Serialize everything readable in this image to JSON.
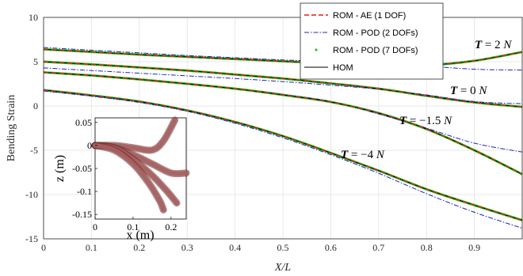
{
  "chart_data": {
    "type": "line",
    "xlabel": "X/L",
    "ylabel": "Bending Strain",
    "xlim": [
      0,
      1
    ],
    "ylim": [
      -15,
      10
    ],
    "xticks": [
      "0",
      "0.1",
      "0.2",
      "0.3",
      "0.4",
      "0.5",
      "0.6",
      "0.7",
      "0.8",
      "0.9"
    ],
    "yticks": [
      "10",
      "5",
      "0",
      "-5",
      "-10",
      "-15"
    ],
    "grid": true,
    "legend_position": "top-right",
    "legend": [
      "ROM - AE (1 DOF)",
      "ROM - POD (2 DOFs)",
      "ROM - POD (7 DOFs)",
      "HOM"
    ],
    "colors": {
      "rom_ae": "#e41a1c",
      "rom_pod2": "#1f1fd0",
      "rom_pod7": "#22cc22",
      "hom": "#000000"
    },
    "annotations": [
      {
        "prefix": "T",
        "eq": " = 2 ",
        "unit": "N"
      },
      {
        "prefix": "T",
        "eq": " = 0 ",
        "unit": "N"
      },
      {
        "prefix": "T",
        "eq": " = −1.5 ",
        "unit": "N"
      },
      {
        "prefix": "T",
        "eq": " = −4 ",
        "unit": "N"
      }
    ],
    "x": [
      0,
      0.1,
      0.2,
      0.3,
      0.4,
      0.5,
      0.6,
      0.7,
      0.8,
      0.9,
      1.0
    ],
    "cases": [
      {
        "label": "T = 2 N",
        "hom": [
          6.4,
          6.1,
          5.8,
          5.55,
          5.3,
          5.05,
          4.8,
          4.6,
          4.6,
          5.1,
          6.1
        ],
        "pod2": [
          6.6,
          6.3,
          6.0,
          5.7,
          5.45,
          5.2,
          5.0,
          4.75,
          4.5,
          4.15,
          4.05
        ]
      },
      {
        "label": "T = 0 N",
        "hom": [
          5.0,
          4.7,
          4.35,
          4.0,
          3.55,
          3.1,
          2.55,
          1.95,
          1.15,
          0.4,
          -0.1
        ],
        "pod2": [
          4.3,
          4.0,
          3.7,
          3.4,
          3.1,
          2.75,
          2.35,
          1.9,
          1.25,
          0.5,
          0.25
        ]
      },
      {
        "label": "T = -1.5 N",
        "hom": [
          3.8,
          3.45,
          3.0,
          2.5,
          1.95,
          1.25,
          0.45,
          -0.8,
          -2.6,
          -5.0,
          -7.7
        ],
        "pod2": [
          3.8,
          3.45,
          3.0,
          2.5,
          1.95,
          1.3,
          0.5,
          -0.9,
          -2.5,
          -4.2,
          -5.2
        ]
      },
      {
        "label": "T = -4 N",
        "hom": [
          1.8,
          1.2,
          0.5,
          -0.5,
          -1.8,
          -3.4,
          -5.3,
          -7.3,
          -9.4,
          -11.2,
          -12.9
        ],
        "pod2": [
          1.7,
          1.1,
          0.4,
          -0.6,
          -1.95,
          -3.6,
          -5.5,
          -7.6,
          -9.9,
          -12.0,
          -13.8
        ]
      }
    ],
    "inset": {
      "xlabel": "x (m)",
      "ylabel": "z (m)",
      "xlim": [
        0,
        0.24
      ],
      "ylim": [
        -0.16,
        0.06
      ],
      "xticks": [
        "0",
        "0.1",
        "0.2"
      ],
      "yticks": [
        "0.05",
        "0",
        "-0.05",
        "-0.1",
        "-0.15"
      ],
      "beam_color": "#a86060",
      "beams": [
        {
          "x": [
            0,
            0.05,
            0.1,
            0.15,
            0.18,
            0.21
          ],
          "z": [
            0,
            0,
            -0.005,
            -0.01,
            0.01,
            0.055
          ]
        },
        {
          "x": [
            0,
            0.05,
            0.1,
            0.15,
            0.2,
            0.24
          ],
          "z": [
            0,
            -0.005,
            -0.02,
            -0.04,
            -0.06,
            -0.06
          ]
        },
        {
          "x": [
            0,
            0.05,
            0.1,
            0.15,
            0.19,
            0.215
          ],
          "z": [
            0,
            -0.005,
            -0.03,
            -0.065,
            -0.1,
            -0.125
          ]
        },
        {
          "x": [
            0,
            0.05,
            0.1,
            0.14,
            0.17,
            0.18
          ],
          "z": [
            0,
            -0.01,
            -0.04,
            -0.08,
            -0.12,
            -0.14
          ]
        }
      ]
    }
  }
}
